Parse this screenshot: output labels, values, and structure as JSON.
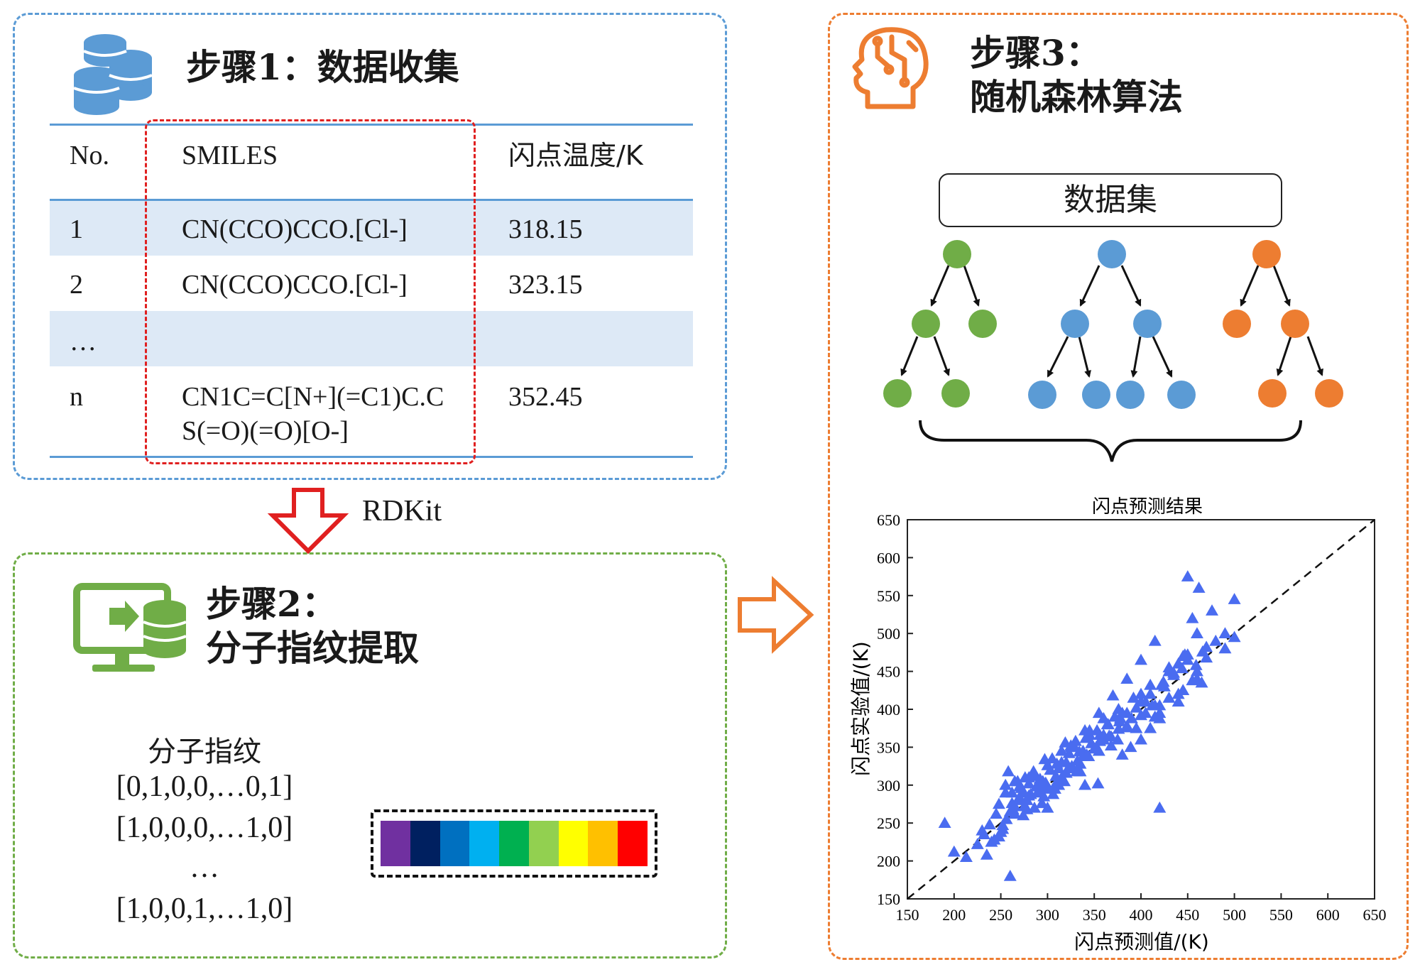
{
  "step1": {
    "title": "步骤1：数据收集",
    "table": {
      "headers": [
        "No.",
        "SMILES",
        "闪点温度/K"
      ],
      "rows": [
        {
          "no": "1",
          "smiles": [
            "CN(CCO)CCO.[Cl-]"
          ],
          "flash": "318.15"
        },
        {
          "no": "2",
          "smiles": [
            "CN(CCO)CCO.[Cl-]"
          ],
          "flash": "323.15"
        },
        {
          "no": "…",
          "smiles": [
            ""
          ],
          "flash": ""
        },
        {
          "no": "n",
          "smiles": [
            "CN1C=C[N+](=C1)C.C",
            "S(=O)(=O)[O-]"
          ],
          "flash": "352.45"
        }
      ]
    }
  },
  "arrow_label": "RDKit",
  "step2": {
    "title_line1": "步骤2：",
    "title_line2": "分子指纹提取",
    "fingerprint": {
      "title": "分子指纹",
      "lines": [
        "[0,1,0,0,…0,1]",
        "[1,0,0,0,…1,0]",
        "…",
        "[1,0,0,1,…1,0]"
      ]
    },
    "color_bar": [
      "#7030a0",
      "#002060",
      "#0070c0",
      "#00b0f0",
      "#00b050",
      "#92d050",
      "#ffff00",
      "#ffc000",
      "#ff0000"
    ]
  },
  "step3": {
    "title_line1": "步骤3：",
    "title_line2": "随机森林算法",
    "dataset_label": "数据集",
    "tree_colors": {
      "green": "#70ad47",
      "blue": "#5b9bd5",
      "orange": "#ed7d31"
    }
  },
  "icons": {
    "step1": "database-icon",
    "step2": "computer-database-icon",
    "step3": "ai-head-icon"
  },
  "chart_data": {
    "type": "scatter",
    "title": "闪点预测结果",
    "xlabel": "闪点预测值/(K)",
    "ylabel": "闪点实验值/(K)",
    "xlim": [
      150,
      650
    ],
    "ylim": [
      150,
      650
    ],
    "xticks": [
      150,
      200,
      250,
      300,
      350,
      400,
      450,
      500,
      550,
      600,
      650
    ],
    "yticks": [
      150,
      200,
      250,
      300,
      350,
      400,
      450,
      500,
      550,
      600,
      650
    ],
    "marker": "triangle",
    "marker_color": "#4a6cf0",
    "reference_line": {
      "x": [
        150,
        650
      ],
      "y": [
        150,
        650
      ],
      "style": "dashed"
    },
    "series": [
      {
        "x": [
          190,
          200,
          213,
          225,
          232,
          238,
          243,
          245,
          248,
          252,
          255,
          258,
          260,
          262,
          265,
          268,
          270,
          272,
          274,
          276,
          278,
          280,
          282,
          284,
          286,
          288,
          290,
          292,
          294,
          296,
          298,
          300,
          303,
          306,
          309,
          312,
          315,
          318,
          320,
          323,
          326,
          329,
          332,
          335,
          338,
          341,
          344,
          347,
          350,
          353,
          356,
          360,
          364,
          368,
          372,
          376,
          380,
          385,
          390,
          395,
          400,
          405,
          410,
          415,
          420,
          425,
          430,
          435,
          440,
          445,
          450,
          455,
          460,
          470,
          480,
          490,
          500,
          248,
          256,
          262,
          270,
          278,
          285,
          292,
          300,
          308,
          315,
          322,
          330,
          338,
          345,
          352,
          360,
          368,
          376,
          384,
          392,
          400,
          410,
          420,
          430,
          440,
          450,
          460,
          255,
          265,
          275,
          285,
          295,
          305,
          315,
          325,
          335,
          345,
          355,
          365,
          375,
          385,
          395,
          405,
          415,
          240,
          252,
          263,
          274,
          286,
          297,
          308,
          319,
          331,
          342,
          354,
          366,
          377,
          389,
          400,
          412,
          424,
          435,
          447,
          459,
          470,
          268,
          290,
          312,
          334,
          356,
          378,
          400,
          422,
          444,
          466,
          490,
          230,
          260,
          280,
          300,
          320,
          340,
          360,
          380,
          420,
          440,
          455,
          465,
          500,
          235,
          250,
          265,
          280,
          295,
          310,
          325,
          340,
          355,
          370,
          385,
          400,
          415,
          430,
          445,
          460,
          450,
          462,
          476,
          400,
          410,
          420
        ],
        "y": [
          250,
          212,
          205,
          222,
          235,
          248,
          228,
          262,
          275,
          242,
          300,
          318,
          265,
          290,
          272,
          305,
          284,
          296,
          260,
          310,
          280,
          302,
          288,
          315,
          270,
          298,
          292,
          308,
          276,
          285,
          303,
          295,
          320,
          288,
          312,
          300,
          330,
          305,
          316,
          342,
          325,
          350,
          332,
          318,
          345,
          362,
          338,
          355,
          348,
          372,
          358,
          366,
          380,
          352,
          390,
          374,
          395,
          378,
          388,
          402,
          410,
          395,
          420,
          405,
          388,
          430,
          415,
          445,
          460,
          425,
          472,
          438,
          450,
          468,
          490,
          480,
          495,
          232,
          255,
          276,
          298,
          268,
          312,
          290,
          326,
          300,
          345,
          322,
          358,
          338,
          372,
          350,
          388,
          364,
          400,
          376,
          415,
          392,
          432,
          405,
          450,
          420,
          465,
          440,
          290,
          305,
          272,
          318,
          296,
          335,
          310,
          352,
          328,
          366,
          345,
          380,
          360,
          395,
          375,
          410,
          390,
          225,
          247,
          268,
          290,
          312,
          334,
          295,
          356,
          318,
          340,
          302,
          365,
          384,
          350,
          420,
          405,
          436,
          448,
          472,
          458,
          482,
          280,
          300,
          322,
          344,
          366,
          388,
          410,
          432,
          454,
          476,
          500,
          240,
          180,
          310,
          270,
          330,
          300,
          360,
          340,
          395,
          410,
          520,
          435,
          545,
          208,
          238,
          262,
          286,
          305,
          328,
          350,
          372,
          395,
          418,
          440,
          465,
          490,
          455,
          470,
          500,
          575,
          560,
          530,
          360,
          375,
          270
        ]
      }
    ]
  }
}
